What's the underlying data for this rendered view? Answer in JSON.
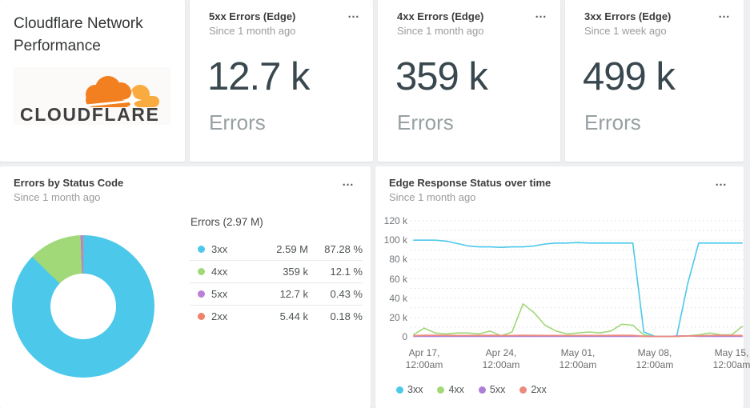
{
  "ui": {
    "menu_glyph": "…"
  },
  "title_card": {
    "title": "Cloudflare Network Performance",
    "logo_wordmark": "CLOUDFLARE",
    "logo_orange": "#f38020",
    "logo_light_orange": "#f9ab40",
    "logo_text_color": "#404041"
  },
  "stat_cards": [
    {
      "title": "5xx Errors (Edge)",
      "subtitle": "Since 1 month ago",
      "value": "12.7 k",
      "label": "Errors"
    },
    {
      "title": "4xx Errors (Edge)",
      "subtitle": "Since 1 month ago",
      "value": "359 k",
      "label": "Errors"
    },
    {
      "title": "3xx Errors (Edge)",
      "subtitle": "Since 1 week ago",
      "value": "499 k",
      "label": "Errors"
    }
  ],
  "chart_data": [
    {
      "type": "pie",
      "donut": true,
      "title": "Errors by Status Code",
      "subtitle": "Since 1 month ago",
      "total_label": "Errors (2.97 M)",
      "slices": [
        {
          "label": "3xx",
          "value": "2.59 M",
          "pct": 87.28,
          "pct_label": "87.28 %",
          "color": "#4bc8ea"
        },
        {
          "label": "4xx",
          "value": "359 k",
          "pct": 12.1,
          "pct_label": "12.1 %",
          "color": "#a1d878"
        },
        {
          "label": "5xx",
          "value": "12.7 k",
          "pct": 0.43,
          "pct_label": "0.43 %",
          "color": "#bd7ed6"
        },
        {
          "label": "2xx",
          "value": "5.44 k",
          "pct": 0.18,
          "pct_label": "0.18 %",
          "color": "#f0826b"
        }
      ]
    },
    {
      "type": "line",
      "title": "Edge Response Status over time",
      "subtitle": "Since 1 month ago",
      "unit": "k",
      "ylim": [
        0,
        120
      ],
      "grid": "dotted-horizontal-every-10k",
      "legend_position": "bottom-left",
      "y_ticks": [
        {
          "v": 0,
          "label": "0"
        },
        {
          "v": 20,
          "label": "20 k"
        },
        {
          "v": 40,
          "label": "40 k"
        },
        {
          "v": 60,
          "label": "60 k"
        },
        {
          "v": 80,
          "label": "80 k"
        },
        {
          "v": 100,
          "label": "100 k"
        },
        {
          "v": 120,
          "label": "120 k"
        }
      ],
      "x_ticks": [
        {
          "day": 1,
          "lines": [
            "Apr 17,",
            "12:00am"
          ]
        },
        {
          "day": 8,
          "lines": [
            "Apr 24,",
            "12:00am"
          ]
        },
        {
          "day": 15,
          "lines": [
            "May 01,",
            "12:00am"
          ]
        },
        {
          "day": 22,
          "lines": [
            "May 08,",
            "12:00am"
          ]
        },
        {
          "day": 29,
          "lines": [
            "May 15,",
            "12:00am"
          ]
        }
      ],
      "series": [
        {
          "name": "3xx",
          "color": "#4bc8ea",
          "width": 1.6,
          "values": [
            100,
            100,
            100,
            99,
            96.5,
            94,
            93,
            93,
            92.5,
            93,
            93,
            94,
            96,
            97,
            97,
            97.5,
            97,
            97,
            97,
            97,
            97,
            5,
            0.6,
            0.3,
            0.3,
            55,
            97,
            97,
            97,
            97,
            97
          ]
        },
        {
          "name": "4xx",
          "color": "#a1d878",
          "width": 1.6,
          "values": [
            2,
            9,
            4,
            3,
            4,
            4,
            3,
            6,
            1,
            5,
            34,
            25,
            12,
            6,
            3,
            4,
            5,
            4,
            6,
            13,
            12,
            2,
            0.3,
            0.3,
            0.3,
            1,
            2,
            4,
            2,
            2,
            11
          ]
        },
        {
          "name": "5xx",
          "color": "#ad7fd9",
          "width": 1.4,
          "values": [
            0.35,
            0.35,
            0.35,
            0.35,
            0.35,
            0.35,
            0.35,
            0.35,
            0.35,
            0.35,
            0.35,
            0.35,
            0.35,
            0.35,
            0.35,
            0.35,
            0.35,
            0.35,
            0.35,
            0.35,
            0.35,
            0.3,
            0.2,
            0.2,
            1,
            1,
            0.35,
            0.35,
            0.35,
            0.35,
            0.35
          ]
        },
        {
          "name": "2xx",
          "color": "#ec8a80",
          "width": 1.8,
          "values": [
            1.2,
            1.5,
            1.6,
            1.5,
            1.3,
            1.3,
            1.4,
            1.5,
            1.3,
            1.3,
            1.5,
            1.4,
            1.3,
            1.3,
            1.3,
            1.3,
            1.3,
            1.3,
            1.4,
            1.6,
            1.4,
            0.6,
            0.4,
            0.4,
            0.4,
            0.8,
            1.1,
            1.3,
            1.5,
            1.4,
            1.3
          ]
        }
      ]
    }
  ]
}
